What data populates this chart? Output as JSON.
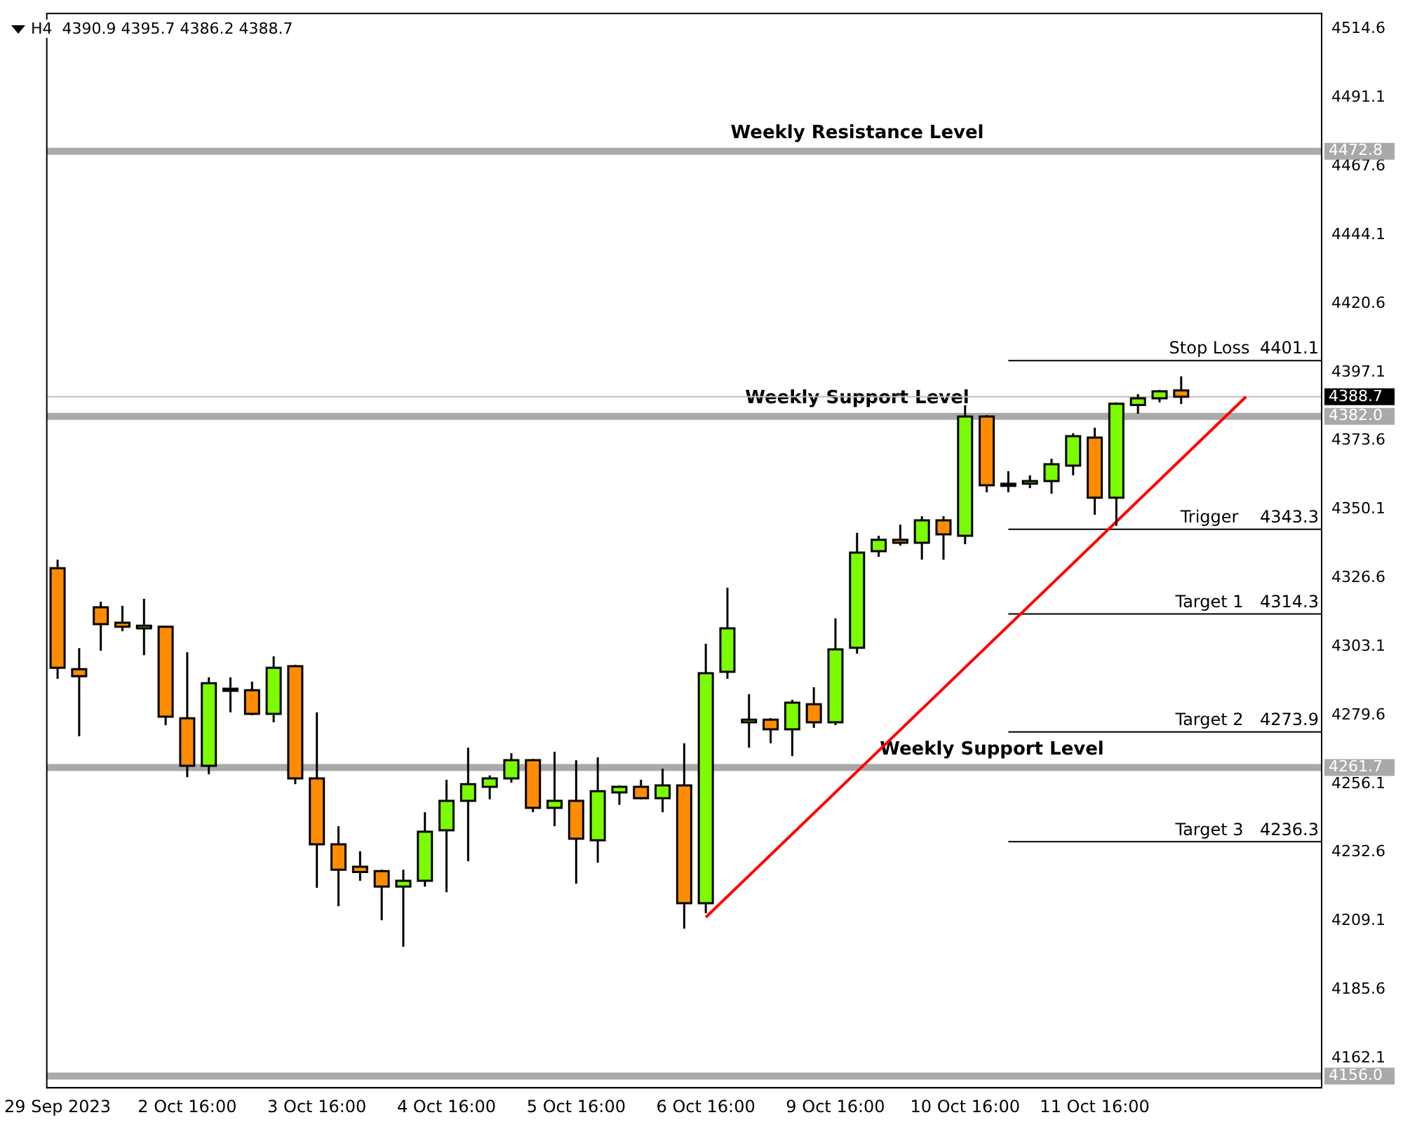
{
  "chart_data": {
    "type": "candlestick",
    "title": "H4  4390.9 4395.7 4386.2 4388.7",
    "categories": [
      "29 Sep 2023",
      null,
      null,
      null,
      null,
      null,
      "2 Oct 16:00",
      null,
      null,
      null,
      null,
      null,
      "3 Oct 16:00",
      null,
      null,
      null,
      null,
      null,
      "4 Oct 16:00",
      null,
      null,
      null,
      null,
      null,
      "5 Oct 16:00",
      null,
      null,
      null,
      null,
      null,
      "6 Oct 16:00",
      null,
      null,
      null,
      null,
      null,
      "9 Oct 16:00",
      null,
      null,
      null,
      null,
      null,
      "10 Oct 16:00",
      null,
      null,
      null,
      null,
      null,
      "11 Oct 16:00",
      null,
      null,
      null,
      null,
      null,
      null,
      null,
      null,
      null,
      null
    ],
    "ohlc": [
      [
        4330.0,
        4332.9,
        4292.1,
        4295.9
      ],
      [
        4295.4,
        4302.6,
        4272.4,
        4293.0
      ],
      [
        4316.6,
        4318.5,
        4301.7,
        4310.8
      ],
      [
        4311.3,
        4317.1,
        4308.4,
        4309.9
      ],
      [
        4309.4,
        4319.5,
        4300.2,
        4310.3
      ],
      [
        4309.9,
        4310.3,
        4276.2,
        4279.1
      ],
      [
        4278.6,
        4301.2,
        4258.4,
        4262.3
      ],
      [
        4262.3,
        4292.6,
        4259.4,
        4290.6
      ],
      [
        4288.7,
        4292.6,
        4280.6,
        4288.7
      ],
      [
        4288.2,
        4291.1,
        4279.6,
        4280.1
      ],
      [
        4280.1,
        4299.8,
        4277.2,
        4295.9
      ],
      [
        4296.4,
        4296.9,
        4256.0,
        4258.0
      ],
      [
        4258.0,
        4280.6,
        4220.5,
        4235.4
      ],
      [
        4235.4,
        4241.6,
        4214.2,
        4226.7
      ],
      [
        4227.7,
        4233.0,
        4222.9,
        4225.9
      ],
      [
        4226.2,
        4226.7,
        4209.4,
        4220.9
      ],
      [
        4220.9,
        4226.7,
        4200.3,
        4222.9
      ],
      [
        4222.9,
        4246.4,
        4220.9,
        4239.7
      ],
      [
        4240.2,
        4257.5,
        4219.0,
        4250.3
      ],
      [
        4250.3,
        4268.5,
        4229.6,
        4256.0
      ],
      [
        4255.1,
        4259.0,
        4250.8,
        4258.0
      ],
      [
        4258.0,
        4266.6,
        4256.5,
        4264.2
      ],
      [
        4264.2,
        4264.6,
        4246.4,
        4247.9
      ],
      [
        4247.9,
        4267.1,
        4241.6,
        4250.3
      ],
      [
        4250.3,
        4264.2,
        4221.9,
        4237.3
      ],
      [
        4236.8,
        4265.2,
        4229.1,
        4253.6
      ],
      [
        4253.2,
        4255.6,
        4248.9,
        4255.1
      ],
      [
        4255.1,
        4257.5,
        4250.8,
        4251.2
      ],
      [
        4251.2,
        4261.3,
        4246.4,
        4255.6
      ],
      [
        4255.6,
        4270.0,
        4206.5,
        4215.2
      ],
      [
        4215.2,
        4304.1,
        4211.8,
        4294.0
      ],
      [
        4294.5,
        4323.3,
        4292.1,
        4309.4
      ],
      [
        4277.2,
        4286.8,
        4268.5,
        4278.1
      ],
      [
        4278.1,
        4278.6,
        4270.0,
        4274.8
      ],
      [
        4274.8,
        4284.9,
        4265.6,
        4283.9
      ],
      [
        4283.4,
        4289.2,
        4275.3,
        4277.2
      ],
      [
        4277.2,
        4312.8,
        4276.2,
        4302.2
      ],
      [
        4302.7,
        4342.1,
        4300.7,
        4335.3
      ],
      [
        4335.8,
        4341.1,
        4333.9,
        4339.7
      ],
      [
        4339.7,
        4344.9,
        4337.7,
        4338.7
      ],
      [
        4338.7,
        4347.8,
        4332.9,
        4346.4
      ],
      [
        4346.4,
        4347.8,
        4332.9,
        4341.6
      ],
      [
        4341.1,
        4385.8,
        4338.2,
        4381.9
      ],
      [
        4381.9,
        4382.4,
        4356.0,
        4358.4
      ],
      [
        4358.9,
        4363.2,
        4356.0,
        4358.9
      ],
      [
        4358.9,
        4361.8,
        4357.4,
        4359.8
      ],
      [
        4359.8,
        4367.5,
        4355.5,
        4365.6
      ],
      [
        4365.1,
        4376.2,
        4361.8,
        4375.2
      ],
      [
        4374.7,
        4378.1,
        4348.3,
        4354.1
      ],
      [
        4354.1,
        4386.8,
        4344.5,
        4386.3
      ],
      [
        4385.9,
        4389.6,
        4382.9,
        4388.2
      ],
      [
        4388.2,
        4391.0,
        4386.8,
        4390.6
      ],
      [
        4390.9,
        4395.7,
        4386.2,
        4388.7
      ],
      null,
      null,
      null,
      null,
      null,
      null
    ],
    "colors": [
      "#ff8c00",
      "#ff8c00",
      "#ff8c00",
      "#ff8c00",
      "#7cfc00",
      "#ff8c00",
      "#ff8c00",
      "#7cfc00",
      "#000000",
      "#ff8c00",
      "#7cfc00",
      "#ff8c00",
      "#ff8c00",
      "#ff8c00",
      "#ff8c00",
      "#ff8c00",
      "#7cfc00",
      "#7cfc00",
      "#7cfc00",
      "#7cfc00",
      "#7cfc00",
      "#7cfc00",
      "#ff8c00",
      "#7cfc00",
      "#ff8c00",
      "#7cfc00",
      "#7cfc00",
      "#ff8c00",
      "#7cfc00",
      "#ff8c00",
      "#7cfc00",
      "#7cfc00",
      "#7cfc00",
      "#ff8c00",
      "#7cfc00",
      "#ff8c00",
      "#7cfc00",
      "#7cfc00",
      "#7cfc00",
      "#ff8c00",
      "#7cfc00",
      "#ff8c00",
      "#7cfc00",
      "#ff8c00",
      "#000000",
      "#7cfc00",
      "#7cfc00",
      "#7cfc00",
      "#ff8c00",
      "#7cfc00",
      "#7cfc00",
      "#7cfc00",
      "#ff8c00",
      null,
      null,
      null,
      null,
      null,
      null
    ],
    "series": [
      {
        "type": "line",
        "color": "#ff0000",
        "values": [
          null,
          null,
          null,
          null,
          null,
          null,
          null,
          null,
          null,
          null,
          null,
          null,
          null,
          null,
          null,
          null,
          null,
          null,
          null,
          null,
          null,
          null,
          null,
          null,
          null,
          null,
          null,
          null,
          null,
          null,
          4210.4,
          null,
          null,
          null,
          null,
          null,
          null,
          null,
          null,
          null,
          null,
          null,
          null,
          null,
          null,
          null,
          null,
          null,
          null,
          null,
          null,
          null,
          null,
          null,
          null,
          4388.7,
          null,
          null,
          null
        ]
      }
    ],
    "ylim": [
      4152,
      4520
    ],
    "yticks": [
      4514.6,
      4491.1,
      4467.6,
      4444.1,
      4420.6,
      4397.1,
      4373.6,
      4350.1,
      4326.6,
      4303.1,
      4279.6,
      4256.1,
      4232.6,
      4209.1,
      4185.6,
      4162.1
    ],
    "ref_lines": [
      {
        "axis": "y",
        "value": 4472.8,
        "label": "Weekly Resistance Level",
        "color": "#a9a9a9"
      },
      {
        "axis": "y",
        "value": 4382.0,
        "label": "Weekly Support Level",
        "color": "#a9a9a9"
      },
      {
        "axis": "y",
        "value": 4261.7,
        "label": "Weekly Support Level",
        "color": "#a9a9a9"
      },
      {
        "axis": "y",
        "value": 4156.0,
        "color": "#a9a9a9"
      },
      {
        "axis": "y",
        "value": 4388.7,
        "color": "#c0c0c0"
      },
      {
        "axis": "y",
        "value": 4401.1,
        "label": "Stop Loss",
        "color": "#000000"
      },
      {
        "axis": "y",
        "value": 4343.3,
        "label": "Trigger",
        "color": "#000000"
      },
      {
        "axis": "y",
        "value": 4314.3,
        "label": "Target 1",
        "color": "#000000"
      },
      {
        "axis": "y",
        "value": 4273.9,
        "label": "Target 2",
        "color": "#000000"
      },
      {
        "axis": "y",
        "value": 4236.3,
        "label": "Target 3",
        "color": "#000000"
      }
    ],
    "annotations": [
      "4472.8",
      "4382.0",
      "4261.7",
      "4156.0",
      "4388.7",
      "4401.1",
      "4343.3",
      "4314.3",
      "4273.9",
      "4236.3"
    ],
    "grid": false,
    "legend": false
  }
}
